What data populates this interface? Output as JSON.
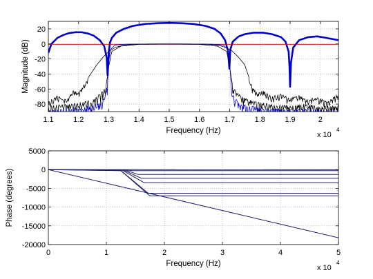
{
  "chart_data": [
    {
      "type": "line",
      "xlabel": "Frequency (Hz)",
      "ylabel": "Magnitude (dB)",
      "xlim": [
        11000,
        20600
      ],
      "ylim": [
        -90,
        30
      ],
      "grid": true,
      "xticks": [
        11000,
        12000,
        13000,
        14000,
        15000,
        16000,
        17000,
        18000,
        19000,
        20000
      ],
      "xtick_labels": [
        "1.1",
        "1.2",
        "1.3",
        "1.4",
        "1.5",
        "1.6",
        "1.7",
        "1.8",
        "1.9",
        "2"
      ],
      "x_multiplier": "x 10",
      "x_multiplier_exp": "4",
      "yticks": [
        20,
        0,
        -20,
        -40,
        -60,
        -80
      ],
      "ytick_labels": [
        "20",
        "0",
        "-20",
        "-40",
        "-60",
        "-80"
      ],
      "series": [
        {
          "color": "#0000cc",
          "width": 2.6,
          "x": [
            11000,
            11100,
            11300,
            11500,
            11700,
            11900,
            12100,
            12300,
            12500,
            12700,
            12850,
            12930,
            12960,
            13000,
            13040,
            13100,
            13250,
            13500,
            13800,
            14200,
            14600,
            15000,
            15400,
            15800,
            16200,
            16500,
            16700,
            16850,
            16950,
            16990,
            17020,
            17100,
            17300,
            17500,
            17800,
            18100,
            18400,
            18700,
            18850,
            18950,
            18980,
            19000,
            19030,
            19100,
            19300,
            19600,
            19900,
            20200,
            20600
          ],
          "y": [
            -12,
            0,
            8,
            12,
            14.5,
            15.5,
            15.5,
            14,
            11,
            5,
            -3,
            -18,
            -42,
            -10,
            2,
            8,
            15,
            20,
            24,
            26.5,
            27.5,
            28,
            27.5,
            26.5,
            24,
            20,
            14,
            5,
            -10,
            -33,
            -8,
            3,
            10,
            13,
            15,
            15,
            13,
            9,
            3,
            -10,
            -30,
            -57,
            -25,
            -5,
            5,
            9,
            10,
            8,
            5
          ]
        },
        {
          "color": "#cc0000",
          "width": 0.9,
          "x": [
            11000,
            20600
          ],
          "y": [
            -0.5,
            -0.5
          ]
        },
        {
          "color": "#000000",
          "width": 0.8,
          "x": [
            11000,
            11300,
            11600,
            11800,
            12000,
            12100,
            12200,
            12400,
            12600,
            12800,
            13000,
            13200,
            13400,
            13600,
            13800,
            14000,
            14500,
            15000,
            15500,
            16000,
            16300,
            16500,
            16700,
            16900,
            17100,
            17300,
            17500,
            17600,
            17700,
            17800,
            17900,
            18100,
            18400,
            18700,
            19000,
            19300,
            19600,
            19900,
            20200,
            20600
          ],
          "y": [
            -76,
            -68,
            -74,
            -62,
            -64,
            -60,
            -52,
            -40,
            -28,
            -18,
            -10,
            -5,
            -2.5,
            -1.2,
            -0.6,
            -0.3,
            -0.1,
            0,
            -0.1,
            -0.3,
            -0.6,
            -1.2,
            -2.5,
            -5,
            -10,
            -18,
            -28,
            -40,
            -52,
            -60,
            -64,
            -62,
            -70,
            -66,
            -72,
            -68,
            -74,
            -70,
            -76,
            -66
          ]
        },
        {
          "color": "#000000",
          "width": 0.8,
          "x": [
            11000,
            11500,
            12000,
            12400,
            12600,
            12800,
            12900,
            12950,
            13000,
            13100,
            13400,
            14000,
            15000,
            16000,
            16600,
            16900,
            17000,
            17050,
            17100,
            17200,
            17400,
            17700,
            18000,
            18500,
            19000,
            19500,
            20000,
            20600
          ],
          "y": [
            -82,
            -80,
            -78,
            -75,
            -70,
            -62,
            -55,
            -45,
            -30,
            -10,
            -3,
            -0.6,
            -0.2,
            -0.6,
            -3,
            -10,
            -30,
            -45,
            -55,
            -62,
            -70,
            -75,
            -78,
            -80,
            -82,
            -80,
            -83,
            -81
          ]
        },
        {
          "color": "#0000cc",
          "width": 0.8,
          "x": [
            11000,
            11500,
            12000,
            12400,
            12700,
            12850,
            12950,
            13000,
            13050,
            13200,
            13600,
            14200,
            15000,
            15800,
            16400,
            16800,
            16950,
            17000,
            17050,
            17150,
            17300,
            17600,
            18000,
            18500,
            19000,
            19500,
            20000,
            20600
          ],
          "y": [
            -88,
            -86,
            -84,
            -82,
            -78,
            -70,
            -55,
            -25,
            -8,
            -1.5,
            -0.3,
            -0.1,
            0,
            -0.1,
            -0.3,
            -1.5,
            -8,
            -25,
            -55,
            -70,
            -78,
            -82,
            -84,
            -86,
            -88,
            -86,
            -87,
            -89
          ]
        }
      ]
    },
    {
      "type": "line",
      "xlabel": "Frequency (Hz)",
      "ylabel": "Phase (degrees)",
      "xlim": [
        0,
        50000
      ],
      "ylim": [
        -20000,
        5000
      ],
      "grid": true,
      "xticks": [
        0,
        10000,
        20000,
        30000,
        40000,
        50000
      ],
      "xtick_labels": [
        "0",
        "1",
        "2",
        "3",
        "4",
        "5"
      ],
      "x_multiplier": "x 10",
      "x_multiplier_exp": "4",
      "yticks": [
        5000,
        0,
        -5000,
        -10000,
        -15000,
        -20000
      ],
      "ytick_labels": [
        "5000",
        "0",
        "-5000",
        "-10000",
        "-15000",
        "-20000"
      ],
      "series": [
        {
          "color": "#1a1a6e",
          "width": 1.0,
          "x": [
            0,
            50000
          ],
          "y": [
            0,
            -18200
          ]
        },
        {
          "color": "#1a1a6e",
          "width": 1.0,
          "x": [
            0,
            12500,
            17500,
            50000
          ],
          "y": [
            0,
            -300,
            -7000,
            -7000
          ]
        },
        {
          "color": "#1a1a6e",
          "width": 1.0,
          "x": [
            0,
            12500,
            17200,
            50000
          ],
          "y": [
            0,
            -250,
            -6300,
            -6300
          ]
        },
        {
          "color": "#1a1a6e",
          "width": 1.0,
          "x": [
            0,
            12800,
            16500,
            50000
          ],
          "y": [
            0,
            -200,
            -3500,
            -3500
          ]
        },
        {
          "color": "#1a1a6e",
          "width": 1.0,
          "x": [
            0,
            13000,
            16000,
            50000
          ],
          "y": [
            0,
            -150,
            -2300,
            -2300
          ]
        },
        {
          "color": "#1a1a6e",
          "width": 1.0,
          "x": [
            0,
            13200,
            15500,
            50000
          ],
          "y": [
            0,
            -100,
            -1300,
            -1300
          ]
        },
        {
          "color": "#1a1a6e",
          "width": 1.0,
          "x": [
            0,
            13000,
            14500,
            50000
          ],
          "y": [
            0,
            -50,
            -300,
            -300
          ]
        },
        {
          "color": "#1a1a6e",
          "width": 1.0,
          "x": [
            0,
            50000
          ],
          "y": [
            0,
            -50
          ]
        }
      ]
    }
  ]
}
